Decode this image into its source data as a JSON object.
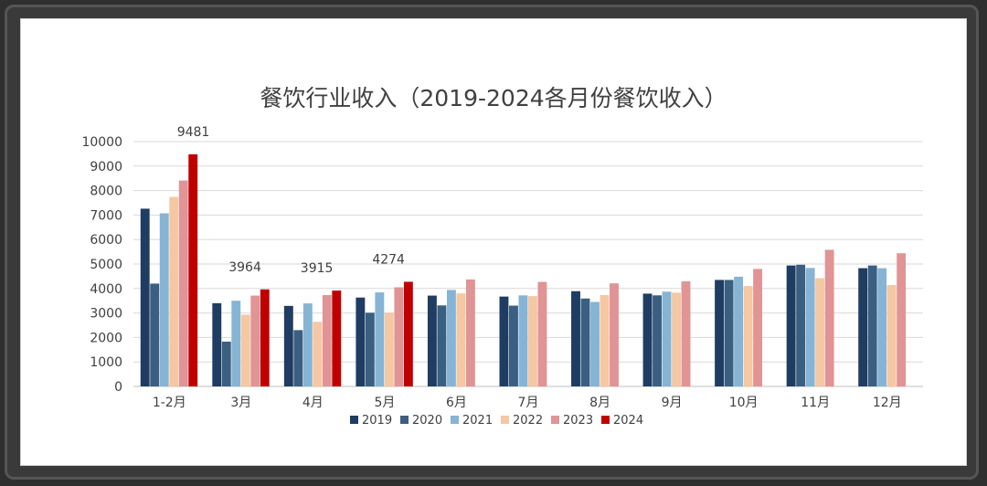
{
  "chart_data": {
    "type": "bar",
    "title": "餐饮行业收入（2019-2024各月份餐饮收入）",
    "categories": [
      "1-2月",
      "3月",
      "4月",
      "5月",
      "6月",
      "7月",
      "8月",
      "9月",
      "10月",
      "11月",
      "12月"
    ],
    "ylim": [
      0,
      10000
    ],
    "yticks": [
      0,
      1000,
      2000,
      3000,
      4000,
      5000,
      6000,
      7000,
      8000,
      9000,
      10000
    ],
    "grid": true,
    "legend_position": "bottom",
    "series": [
      {
        "name": "2019",
        "color": "#1f3d63",
        "values": [
          7260,
          3400,
          3290,
          3630,
          3710,
          3670,
          3890,
          3790,
          4350,
          4940,
          4830
        ]
      },
      {
        "name": "2020",
        "color": "#3b5f80",
        "values": [
          4200,
          1830,
          2300,
          3010,
          3310,
          3300,
          3590,
          3720,
          4350,
          4970,
          4940
        ]
      },
      {
        "name": "2021",
        "color": "#86b4d4",
        "values": [
          7070,
          3500,
          3390,
          3840,
          3940,
          3720,
          3450,
          3870,
          4480,
          4840,
          4830
        ]
      },
      {
        "name": "2022",
        "color": "#f5c7a2",
        "values": [
          7740,
          2930,
          2640,
          3010,
          3800,
          3690,
          3730,
          3830,
          4100,
          4420,
          4140
        ]
      },
      {
        "name": "2023",
        "color": "#e09495",
        "values": [
          8410,
          3710,
          3730,
          4050,
          4370,
          4270,
          4210,
          4290,
          4800,
          5580,
          5440
        ]
      },
      {
        "name": "2024",
        "color": "#c00000",
        "values": [
          9481,
          3964,
          3915,
          4274,
          null,
          null,
          null,
          null,
          null,
          null,
          null
        ]
      }
    ],
    "data_labels": [
      {
        "series": "2024",
        "category": "1-2月",
        "text": "9481"
      },
      {
        "series": "2024",
        "category": "3月",
        "text": "3964"
      },
      {
        "series": "2024",
        "category": "4月",
        "text": "3915"
      },
      {
        "series": "2024",
        "category": "5月",
        "text": "4274"
      }
    ]
  }
}
